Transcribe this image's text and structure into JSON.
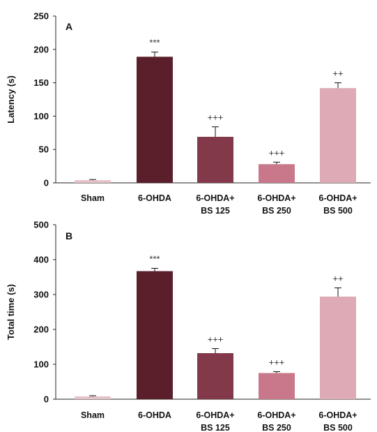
{
  "chart_data": [
    {
      "type": "bar",
      "panel_label": "A",
      "ylabel": "Latency (s)",
      "ylim": [
        0,
        250
      ],
      "yticks": [
        0,
        50,
        100,
        150,
        200,
        250
      ],
      "categories": [
        [
          "Sham"
        ],
        [
          "6-OHDA"
        ],
        [
          "6-OHDA+",
          "BS 125"
        ],
        [
          "6-OHDA+",
          "BS 250"
        ],
        [
          "6-OHDA+",
          "BS 500"
        ]
      ],
      "values": [
        4,
        189,
        69,
        28,
        142
      ],
      "errors": [
        1,
        7,
        15,
        3,
        8
      ],
      "annotations": [
        "",
        "***",
        "+++",
        "+++",
        "++"
      ],
      "colors": [
        "#e4c1c7",
        "#5a1f2b",
        "#82394a",
        "#c8788a",
        "#ddaab5"
      ],
      "grid": false
    },
    {
      "type": "bar",
      "panel_label": "B",
      "ylabel": "Total time (s)",
      "ylim": [
        0,
        500
      ],
      "yticks": [
        0,
        100,
        200,
        300,
        400,
        500
      ],
      "categories": [
        [
          "Sham"
        ],
        [
          "6-OHDA"
        ],
        [
          "6-OHDA+",
          "BS 125"
        ],
        [
          "6-OHDA+",
          "BS 250"
        ],
        [
          "6-OHDA+",
          "BS 500"
        ]
      ],
      "values": [
        8,
        367,
        132,
        75,
        294
      ],
      "errors": [
        2,
        8,
        13,
        4,
        25
      ],
      "annotations": [
        "",
        "***",
        "+++",
        "+++",
        "++"
      ],
      "colors": [
        "#e4c1c7",
        "#5a1f2b",
        "#82394a",
        "#c8788a",
        "#ddaab5"
      ],
      "grid": false
    }
  ]
}
